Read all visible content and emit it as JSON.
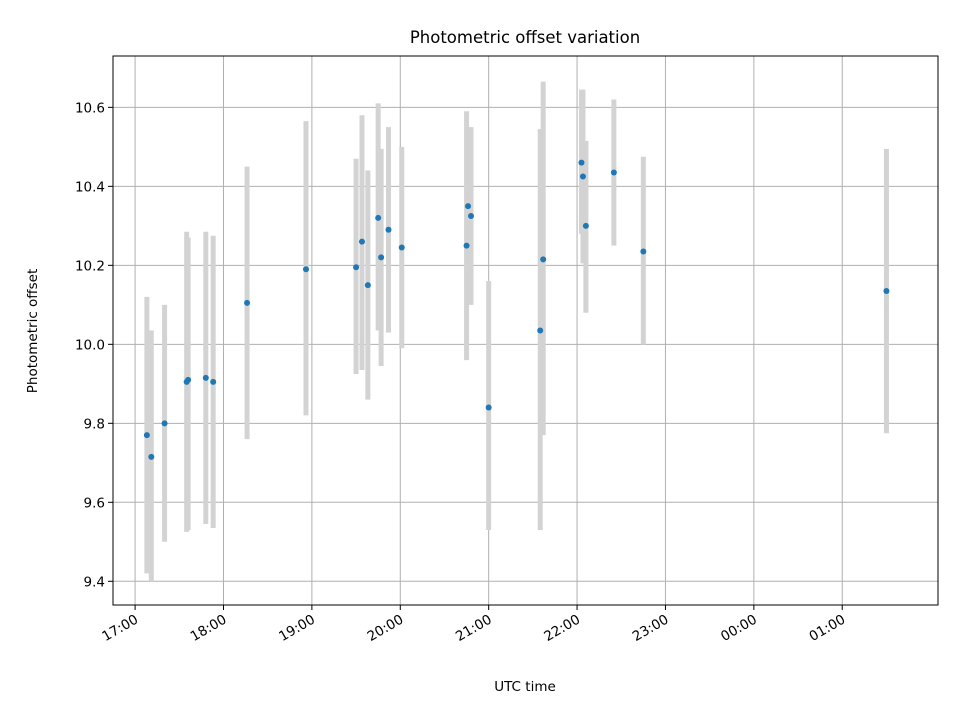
{
  "chart_data": {
    "type": "scatter",
    "title": "Photometric offset variation",
    "xlabel": "UTC time",
    "ylabel": "Photometric offset",
    "x_ticks": [
      "17:00",
      "18:00",
      "19:00",
      "20:00",
      "21:00",
      "22:00",
      "23:00",
      "00:00",
      "01:00"
    ],
    "x_tick_hours": [
      17,
      18,
      19,
      20,
      21,
      22,
      23,
      24,
      25
    ],
    "y_ticks": [
      9.4,
      9.6,
      9.8,
      10.0,
      10.2,
      10.4,
      10.6
    ],
    "y_tick_labels": [
      "9.4",
      "9.6",
      "9.8",
      "10.0",
      "10.2",
      "10.4",
      "10.6"
    ],
    "xlim": [
      "16:45",
      "02:05"
    ],
    "ylim": [
      9.34,
      10.73
    ],
    "grid": true,
    "point_color": "#1f77b4",
    "errorbar_color": "#d3d3d3",
    "points": [
      {
        "t": "17:08",
        "y": 9.77,
        "lo": 9.42,
        "hi": 10.12
      },
      {
        "t": "17:11",
        "y": 9.715,
        "lo": 9.4,
        "hi": 10.035
      },
      {
        "t": "17:20",
        "y": 9.8,
        "lo": 9.5,
        "hi": 10.1
      },
      {
        "t": "17:35",
        "y": 9.905,
        "lo": 9.525,
        "hi": 10.285
      },
      {
        "t": "17:36",
        "y": 9.91,
        "lo": 9.53,
        "hi": 10.27
      },
      {
        "t": "17:48",
        "y": 9.915,
        "lo": 9.545,
        "hi": 10.285
      },
      {
        "t": "17:53",
        "y": 9.905,
        "lo": 9.535,
        "hi": 10.275
      },
      {
        "t": "18:16",
        "y": 10.105,
        "lo": 9.76,
        "hi": 10.45
      },
      {
        "t": "18:56",
        "y": 10.19,
        "lo": 9.82,
        "hi": 10.565
      },
      {
        "t": "19:30",
        "y": 10.195,
        "lo": 9.925,
        "hi": 10.47
      },
      {
        "t": "19:34",
        "y": 10.26,
        "lo": 9.935,
        "hi": 10.58
      },
      {
        "t": "19:38",
        "y": 10.15,
        "lo": 9.86,
        "hi": 10.44
      },
      {
        "t": "19:45",
        "y": 10.32,
        "lo": 10.035,
        "hi": 10.61
      },
      {
        "t": "19:47",
        "y": 10.22,
        "lo": 9.945,
        "hi": 10.495
      },
      {
        "t": "19:52",
        "y": 10.29,
        "lo": 10.03,
        "hi": 10.55
      },
      {
        "t": "20:01",
        "y": 10.245,
        "lo": 9.99,
        "hi": 10.5
      },
      {
        "t": "20:45",
        "y": 10.25,
        "lo": 9.96,
        "hi": 10.59
      },
      {
        "t": "20:46",
        "y": 10.35,
        "lo": 10.15,
        "hi": 10.55
      },
      {
        "t": "20:48",
        "y": 10.325,
        "lo": 10.1,
        "hi": 10.55
      },
      {
        "t": "21:00",
        "y": 9.84,
        "lo": 9.53,
        "hi": 10.16
      },
      {
        "t": "21:35",
        "y": 10.035,
        "lo": 9.53,
        "hi": 10.545
      },
      {
        "t": "21:37",
        "y": 10.215,
        "lo": 9.77,
        "hi": 10.665
      },
      {
        "t": "22:03",
        "y": 10.46,
        "lo": 10.28,
        "hi": 10.645
      },
      {
        "t": "22:04",
        "y": 10.425,
        "lo": 10.205,
        "hi": 10.645
      },
      {
        "t": "22:06",
        "y": 10.3,
        "lo": 10.08,
        "hi": 10.515
      },
      {
        "t": "22:25",
        "y": 10.435,
        "lo": 10.25,
        "hi": 10.62
      },
      {
        "t": "22:45",
        "y": 10.235,
        "lo": 10.0,
        "hi": 10.475
      },
      {
        "t": "01:30",
        "y": 10.135,
        "lo": 9.775,
        "hi": 10.495
      }
    ]
  }
}
